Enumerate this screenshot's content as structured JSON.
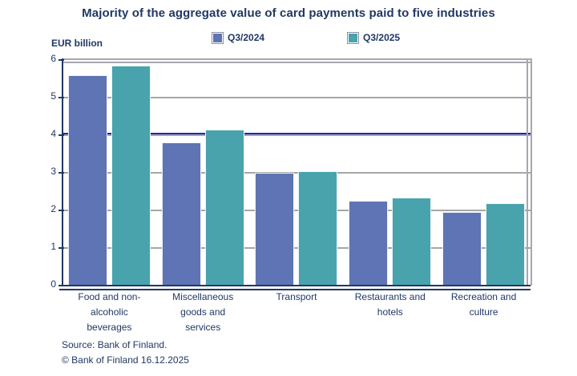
{
  "title": "Majority of the aggregate value of card payments paid to five industries",
  "y_axis_unit": "EUR billion",
  "legend": {
    "items": [
      {
        "label": "Q3/2024",
        "color": "#5e74b4"
      },
      {
        "label": "Q3/2025",
        "color": "#49a3ad"
      }
    ]
  },
  "source": {
    "line1": "Source: Bank of Finland.",
    "line2": "© Bank of Finland 16.12.2025"
  },
  "colors": {
    "text_navy": "#203864",
    "series_2024_blue": "#5e74b4",
    "series_2025_teal": "#49a3ad",
    "gridline_gray": "#a6a6a6",
    "frame_gray": "#a7a7b2",
    "reference_line_blue": "#2323be",
    "background": "#ffffff"
  },
  "chart_data": {
    "type": "bar",
    "title": "Majority of the aggregate value of card payments paid to five industries",
    "xlabel": "",
    "ylabel": "EUR billion",
    "ylim": [
      0,
      6
    ],
    "yticks": [
      0,
      1,
      2,
      3,
      4,
      5,
      6
    ],
    "grid": "horizontal",
    "legend_position": "top",
    "categories": [
      "Food and non-alcoholic beverages",
      "Miscellaneous goods and services",
      "Transport",
      "Restaurants and hotels",
      "Recreation and culture"
    ],
    "category_label_lines": [
      [
        "Food and non-",
        "alcoholic",
        "beverages"
      ],
      [
        "Miscellaneous",
        "goods and",
        "services"
      ],
      [
        "Transport"
      ],
      [
        "Restaurants and",
        "hotels"
      ],
      [
        "Recreation and",
        "culture"
      ]
    ],
    "series": [
      {
        "name": "Q3/2024",
        "color": "#5e74b4",
        "values": [
          5.6,
          3.8,
          3.0,
          2.25,
          1.95
        ]
      },
      {
        "name": "Q3/2025",
        "color": "#49a3ad",
        "values": [
          5.85,
          4.15,
          3.05,
          2.35,
          2.2
        ]
      }
    ],
    "reference_line": {
      "value": 4.05,
      "color": "#2323be"
    }
  }
}
